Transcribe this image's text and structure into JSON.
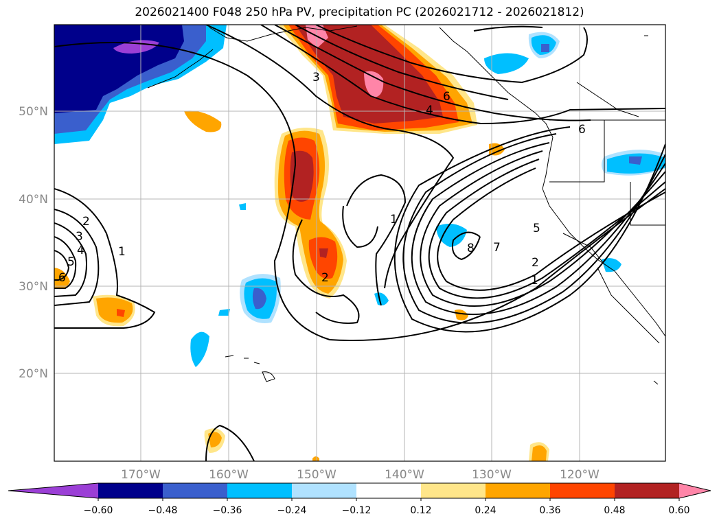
{
  "title": "2026021400 F048 250 hPa PV, precipitation PC (2026021712 - 2026021812)",
  "latitude_labels": [
    "50°N",
    "40°N",
    "30°N",
    "20°N"
  ],
  "longitude_labels": [
    "170°W",
    "160°W",
    "150°W",
    "140°W",
    "130°W",
    "120°W"
  ],
  "colorbar": {
    "colors": [
      "#9b3fd6",
      "#00008b",
      "#3a5fcd",
      "#00bfff",
      "#b0e2ff",
      "#ffffff",
      "#ffe68a",
      "#ffa500",
      "#ff4500",
      "#b22222",
      "#ff85a8"
    ],
    "tick_labels": [
      "−0.60",
      "−0.48",
      "−0.36",
      "−0.24",
      "−0.12",
      "0.12",
      "0.24",
      "0.36",
      "0.48",
      "0.60"
    ]
  },
  "contour_labels": [
    "3",
    "6",
    "4",
    "6",
    "1",
    "5",
    "8",
    "7",
    "2",
    "1",
    "2",
    "3",
    "4",
    "5",
    "6",
    "1",
    "2"
  ],
  "colors": {
    "grid": "#b4b4b4",
    "contour": "#000000",
    "axis_label": "#888888"
  }
}
